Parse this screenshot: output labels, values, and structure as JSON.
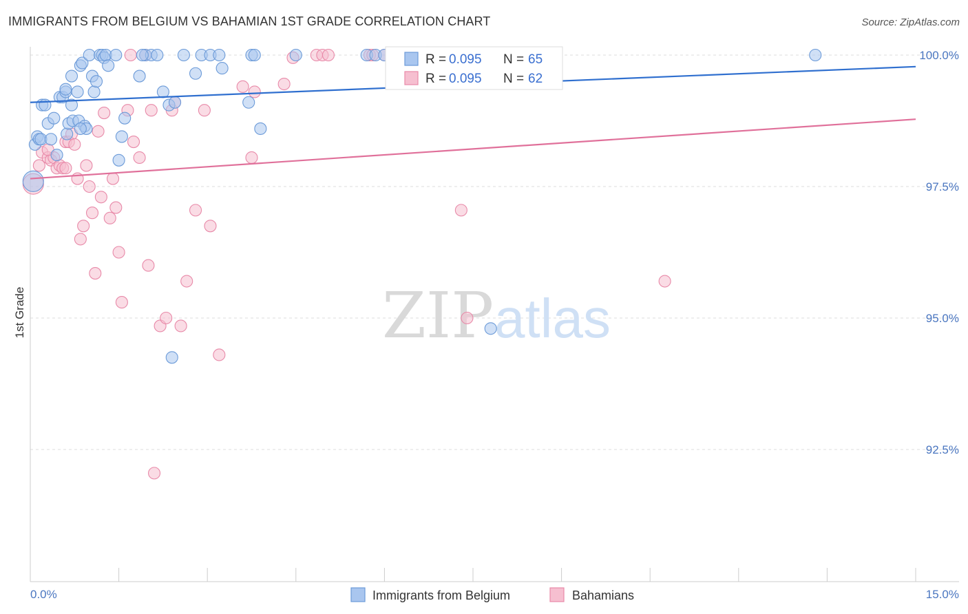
{
  "title": "IMMIGRANTS FROM BELGIUM VS BAHAMIAN 1ST GRADE CORRELATION CHART",
  "source": "Source: ZipAtlas.com",
  "watermark": {
    "zip": "ZIP",
    "atlas": "atlas"
  },
  "colors": {
    "blue_fill": "#a9c6ef",
    "blue_stroke": "#6b9ad8",
    "blue_line": "#2f6fcf",
    "pink_fill": "#f6bfd0",
    "pink_stroke": "#e889a8",
    "pink_line": "#e0709a",
    "grid": "#dddddd",
    "axis_text": "#4a76c0"
  },
  "legend": {
    "rows": [
      {
        "r_label": "R = ",
        "r_value": "0.095",
        "n_label": "N = ",
        "n_value": "65"
      },
      {
        "r_label": "R = ",
        "r_value": "0.095",
        "n_label": "N = ",
        "n_value": "62"
      }
    ]
  },
  "bottom_legend": {
    "series1": "Immigrants from Belgium",
    "series2": "Bahamians"
  },
  "chart_data": {
    "type": "scatter",
    "title": "IMMIGRANTS FROM BELGIUM VS BAHAMIAN 1ST GRADE CORRELATION CHART",
    "xlabel": "",
    "ylabel": "1st Grade",
    "xlim": [
      0,
      15
    ],
    "ylim": [
      90.2,
      100.4
    ],
    "x_tick_labels": [
      "0.0%",
      "15.0%"
    ],
    "y_ticks": [
      92.5,
      95.0,
      97.5,
      100.0
    ],
    "y_tick_labels": [
      "92.5%",
      "95.0%",
      "97.5%",
      "100.0%"
    ],
    "grid": true,
    "series": [
      {
        "name": "Immigrants from Belgium",
        "r": 0.095,
        "n": 65,
        "trend": [
          [
            0,
            99.1
          ],
          [
            15,
            99.78
          ]
        ],
        "points": [
          [
            0.05,
            97.6
          ],
          [
            0.08,
            98.3
          ],
          [
            0.12,
            98.45
          ],
          [
            0.15,
            98.4
          ],
          [
            0.18,
            98.4
          ],
          [
            0.2,
            99.05
          ],
          [
            0.25,
            99.05
          ],
          [
            0.3,
            98.7
          ],
          [
            0.35,
            98.4
          ],
          [
            0.4,
            98.8
          ],
          [
            0.45,
            98.1
          ],
          [
            0.5,
            99.2
          ],
          [
            0.55,
            99.2
          ],
          [
            0.6,
            99.3
          ],
          [
            0.6,
            99.35
          ],
          [
            0.62,
            98.5
          ],
          [
            0.65,
            98.7
          ],
          [
            0.7,
            99.05
          ],
          [
            0.7,
            99.6
          ],
          [
            0.72,
            98.75
          ],
          [
            0.8,
            99.3
          ],
          [
            0.82,
            98.75
          ],
          [
            0.85,
            99.8
          ],
          [
            0.88,
            99.85
          ],
          [
            0.92,
            98.65
          ],
          [
            0.95,
            98.6
          ],
          [
            1.0,
            100.0
          ],
          [
            1.05,
            99.6
          ],
          [
            1.08,
            99.3
          ],
          [
            1.12,
            99.5
          ],
          [
            1.18,
            100.0
          ],
          [
            1.22,
            100.0
          ],
          [
            1.25,
            99.95
          ],
          [
            1.28,
            100.0
          ],
          [
            1.32,
            99.8
          ],
          [
            1.45,
            100.0
          ],
          [
            1.5,
            98.0
          ],
          [
            1.55,
            98.45
          ],
          [
            1.6,
            98.8
          ],
          [
            1.85,
            99.6
          ],
          [
            1.95,
            100.0
          ],
          [
            2.05,
            100.0
          ],
          [
            2.15,
            100.0
          ],
          [
            2.25,
            99.3
          ],
          [
            2.35,
            99.05
          ],
          [
            2.45,
            99.1
          ],
          [
            2.6,
            100.0
          ],
          [
            2.8,
            99.65
          ],
          [
            2.9,
            100.0
          ],
          [
            3.05,
            100.0
          ],
          [
            3.2,
            100.0
          ],
          [
            3.25,
            99.75
          ],
          [
            3.7,
            99.1
          ],
          [
            3.75,
            100.0
          ],
          [
            3.8,
            100.0
          ],
          [
            3.9,
            98.6
          ],
          [
            4.5,
            100.0
          ],
          [
            5.7,
            100.0
          ],
          [
            5.85,
            100.0
          ],
          [
            6.0,
            100.0
          ],
          [
            7.8,
            94.8
          ],
          [
            13.3,
            100.0
          ],
          [
            2.4,
            94.25
          ],
          [
            0.85,
            98.6
          ],
          [
            1.9,
            100.0
          ]
        ]
      },
      {
        "name": "Bahamians",
        "r": 0.095,
        "n": 62,
        "trend": [
          [
            0,
            97.65
          ],
          [
            15,
            98.78
          ]
        ],
        "points": [
          [
            0.05,
            97.55
          ],
          [
            0.15,
            97.9
          ],
          [
            0.2,
            98.15
          ],
          [
            0.3,
            98.05
          ],
          [
            0.35,
            98.0
          ],
          [
            0.4,
            98.05
          ],
          [
            0.45,
            97.85
          ],
          [
            0.5,
            97.9
          ],
          [
            0.55,
            97.85
          ],
          [
            0.6,
            98.35
          ],
          [
            0.65,
            98.35
          ],
          [
            0.7,
            98.5
          ],
          [
            0.75,
            98.3
          ],
          [
            0.8,
            97.65
          ],
          [
            0.85,
            96.5
          ],
          [
            0.9,
            96.75
          ],
          [
            0.95,
            97.9
          ],
          [
            1.0,
            97.5
          ],
          [
            1.05,
            97.0
          ],
          [
            1.1,
            95.85
          ],
          [
            1.15,
            98.55
          ],
          [
            1.2,
            97.3
          ],
          [
            1.25,
            98.9
          ],
          [
            1.35,
            96.9
          ],
          [
            1.4,
            97.65
          ],
          [
            1.45,
            97.1
          ],
          [
            1.5,
            96.25
          ],
          [
            1.55,
            95.3
          ],
          [
            1.65,
            98.95
          ],
          [
            1.7,
            100.0
          ],
          [
            1.75,
            98.35
          ],
          [
            1.85,
            98.05
          ],
          [
            1.95,
            100.0
          ],
          [
            2.0,
            96.0
          ],
          [
            2.05,
            98.95
          ],
          [
            2.1,
            92.05
          ],
          [
            2.2,
            94.85
          ],
          [
            2.3,
            95.0
          ],
          [
            2.4,
            98.95
          ],
          [
            2.45,
            99.1
          ],
          [
            2.55,
            94.85
          ],
          [
            2.65,
            95.7
          ],
          [
            2.8,
            97.05
          ],
          [
            2.95,
            98.95
          ],
          [
            3.05,
            96.75
          ],
          [
            3.2,
            94.3
          ],
          [
            3.6,
            99.4
          ],
          [
            3.75,
            98.05
          ],
          [
            3.8,
            99.3
          ],
          [
            4.3,
            99.45
          ],
          [
            4.45,
            99.95
          ],
          [
            4.85,
            100.0
          ],
          [
            4.95,
            100.0
          ],
          [
            5.05,
            100.0
          ],
          [
            5.75,
            100.0
          ],
          [
            6.0,
            100.0
          ],
          [
            7.3,
            97.05
          ],
          [
            7.4,
            95.0
          ],
          [
            10.75,
            95.7
          ],
          [
            5.8,
            100.0
          ],
          [
            0.6,
            97.85
          ],
          [
            0.3,
            98.2
          ]
        ]
      }
    ]
  }
}
